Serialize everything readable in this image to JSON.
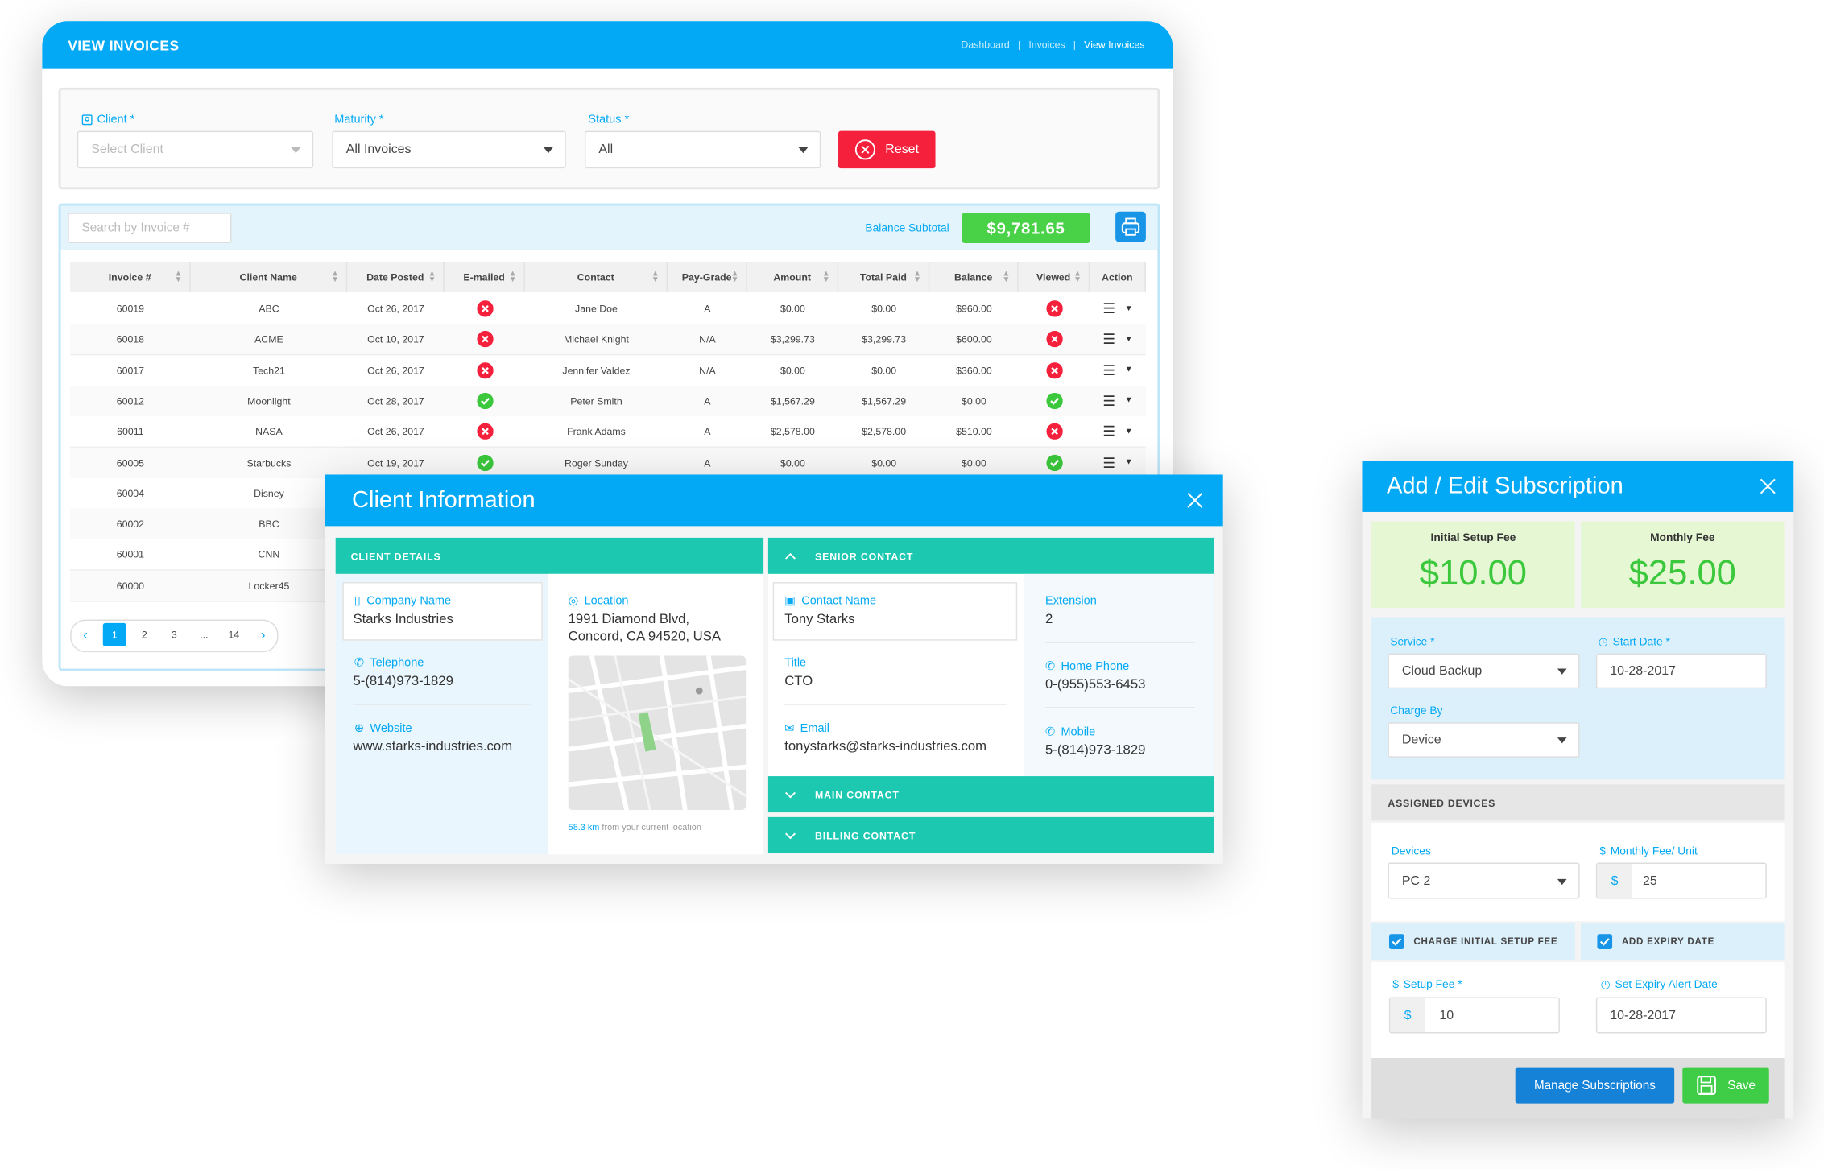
{
  "invoices": {
    "title": "VIEW INVOICES",
    "breadcrumb": [
      "Dashboard",
      "Invoices",
      "View Invoices"
    ],
    "filters": [
      {
        "label": "Client *",
        "value": "Select Client"
      },
      {
        "label": "Maturity *",
        "value": "All Invoices"
      },
      {
        "label": "Status *",
        "value": "All"
      }
    ],
    "reset": "Reset",
    "search_placeholder": "Search by Invoice #",
    "balance_label": "Balance Subtotal",
    "balance_value": "$9,781.65",
    "columns": [
      "Invoice #",
      "Client Name",
      "Date Posted",
      "E-mailed",
      "Contact",
      "Pay-Grade",
      "Amount",
      "Total Paid",
      "Balance",
      "Viewed",
      "Action"
    ],
    "rows": [
      {
        "invoice": "60019",
        "client": "ABC",
        "date": "Oct 26, 2017",
        "emailed": false,
        "contact": "Jane Doe",
        "grade": "A",
        "amount": "$0.00",
        "paid": "$0.00",
        "balance": "$960.00",
        "viewed": false
      },
      {
        "invoice": "60018",
        "client": "ACME",
        "date": "Oct 10, 2017",
        "emailed": false,
        "contact": "Michael Knight",
        "grade": "N/A",
        "amount": "$3,299.73",
        "paid": "$3,299.73",
        "balance": "$600.00",
        "viewed": false
      },
      {
        "invoice": "60017",
        "client": "Tech21",
        "date": "Oct 26, 2017",
        "emailed": false,
        "contact": "Jennifer Valdez",
        "grade": "N/A",
        "amount": "$0.00",
        "paid": "$0.00",
        "balance": "$360.00",
        "viewed": false
      },
      {
        "invoice": "60012",
        "client": "Moonlight",
        "date": "Oct 28, 2017",
        "emailed": true,
        "contact": "Peter Smith",
        "grade": "A",
        "amount": "$1,567.29",
        "paid": "$1,567.29",
        "balance": "$0.00",
        "viewed": true
      },
      {
        "invoice": "60011",
        "client": "NASA",
        "date": "Oct 26, 2017",
        "emailed": false,
        "contact": "Frank Adams",
        "grade": "A",
        "amount": "$2,578.00",
        "paid": "$2,578.00",
        "balance": "$510.00",
        "viewed": false
      },
      {
        "invoice": "60005",
        "client": "Starbucks",
        "date": "Oct 19, 2017",
        "emailed": true,
        "contact": "Roger Sunday",
        "grade": "A",
        "amount": "$0.00",
        "paid": "$0.00",
        "balance": "$0.00",
        "viewed": true
      },
      {
        "invoice": "60004",
        "client": "Disney"
      },
      {
        "invoice": "60002",
        "client": "BBC"
      },
      {
        "invoice": "60001",
        "client": "CNN"
      },
      {
        "invoice": "60000",
        "client": "Locker45"
      }
    ],
    "pagination": [
      "1",
      "2",
      "3",
      "...",
      "14"
    ]
  },
  "client_info": {
    "title": "Client Information",
    "details_heading": "CLIENT DETAILS",
    "company": {
      "label": "Company Name",
      "value": "Starks Industries"
    },
    "telephone": {
      "label": "Telephone",
      "value": "5-(814)973-1829"
    },
    "website": {
      "label": "Website",
      "value": "www.starks-industries.com"
    },
    "location": {
      "label": "Location",
      "lines": [
        "1991 Diamond Blvd,",
        "Concord, CA 94520, USA"
      ]
    },
    "distance": "58.3 km",
    "distance_text": "from your current location",
    "senior_heading": "SENIOR CONTACT",
    "contact_name": {
      "label": "Contact Name",
      "value": "Tony Starks"
    },
    "contact_title": {
      "label": "Title",
      "value": "CTO"
    },
    "email": {
      "label": "Email",
      "value": "tonystarks@starks-industries.com"
    },
    "extension": {
      "label": "Extension",
      "value": "2"
    },
    "home_phone": {
      "label": "Home  Phone",
      "value": "0-(955)553-6453"
    },
    "mobile": {
      "label": "Mobile",
      "value": "5-(814)973-1829"
    },
    "main_heading": "MAIN CONTACT",
    "billing_heading": "BILLING CONTACT"
  },
  "subscription": {
    "title": "Add / Edit Subscription",
    "fees": [
      {
        "label": "Initial Setup Fee",
        "value": "$10.00"
      },
      {
        "label": "Monthly Fee",
        "value": "$25.00"
      }
    ],
    "service": {
      "label": "Service *",
      "value": "Cloud Backup"
    },
    "start_date": {
      "label": "Start Date *",
      "value": "10-28-2017"
    },
    "charge_by": {
      "label": "Charge By",
      "value": "Device"
    },
    "assigned_heading": "ASSIGNED DEVICES",
    "devices": {
      "label": "Devices",
      "value": "PC 2"
    },
    "monthly_unit": {
      "label": "Monthly Fee/ Unit",
      "currency": "$",
      "value": "25"
    },
    "checks": [
      "CHARGE INITIAL SETUP FEE",
      "ADD EXPIRY DATE"
    ],
    "setup_fee": {
      "label": "Setup Fee *",
      "currency": "$",
      "value": "10"
    },
    "expiry": {
      "label": "Set Expiry Alert Date",
      "value": "10-28-2017"
    },
    "manage_button": "Manage Subscriptions",
    "save_button": "Save"
  }
}
